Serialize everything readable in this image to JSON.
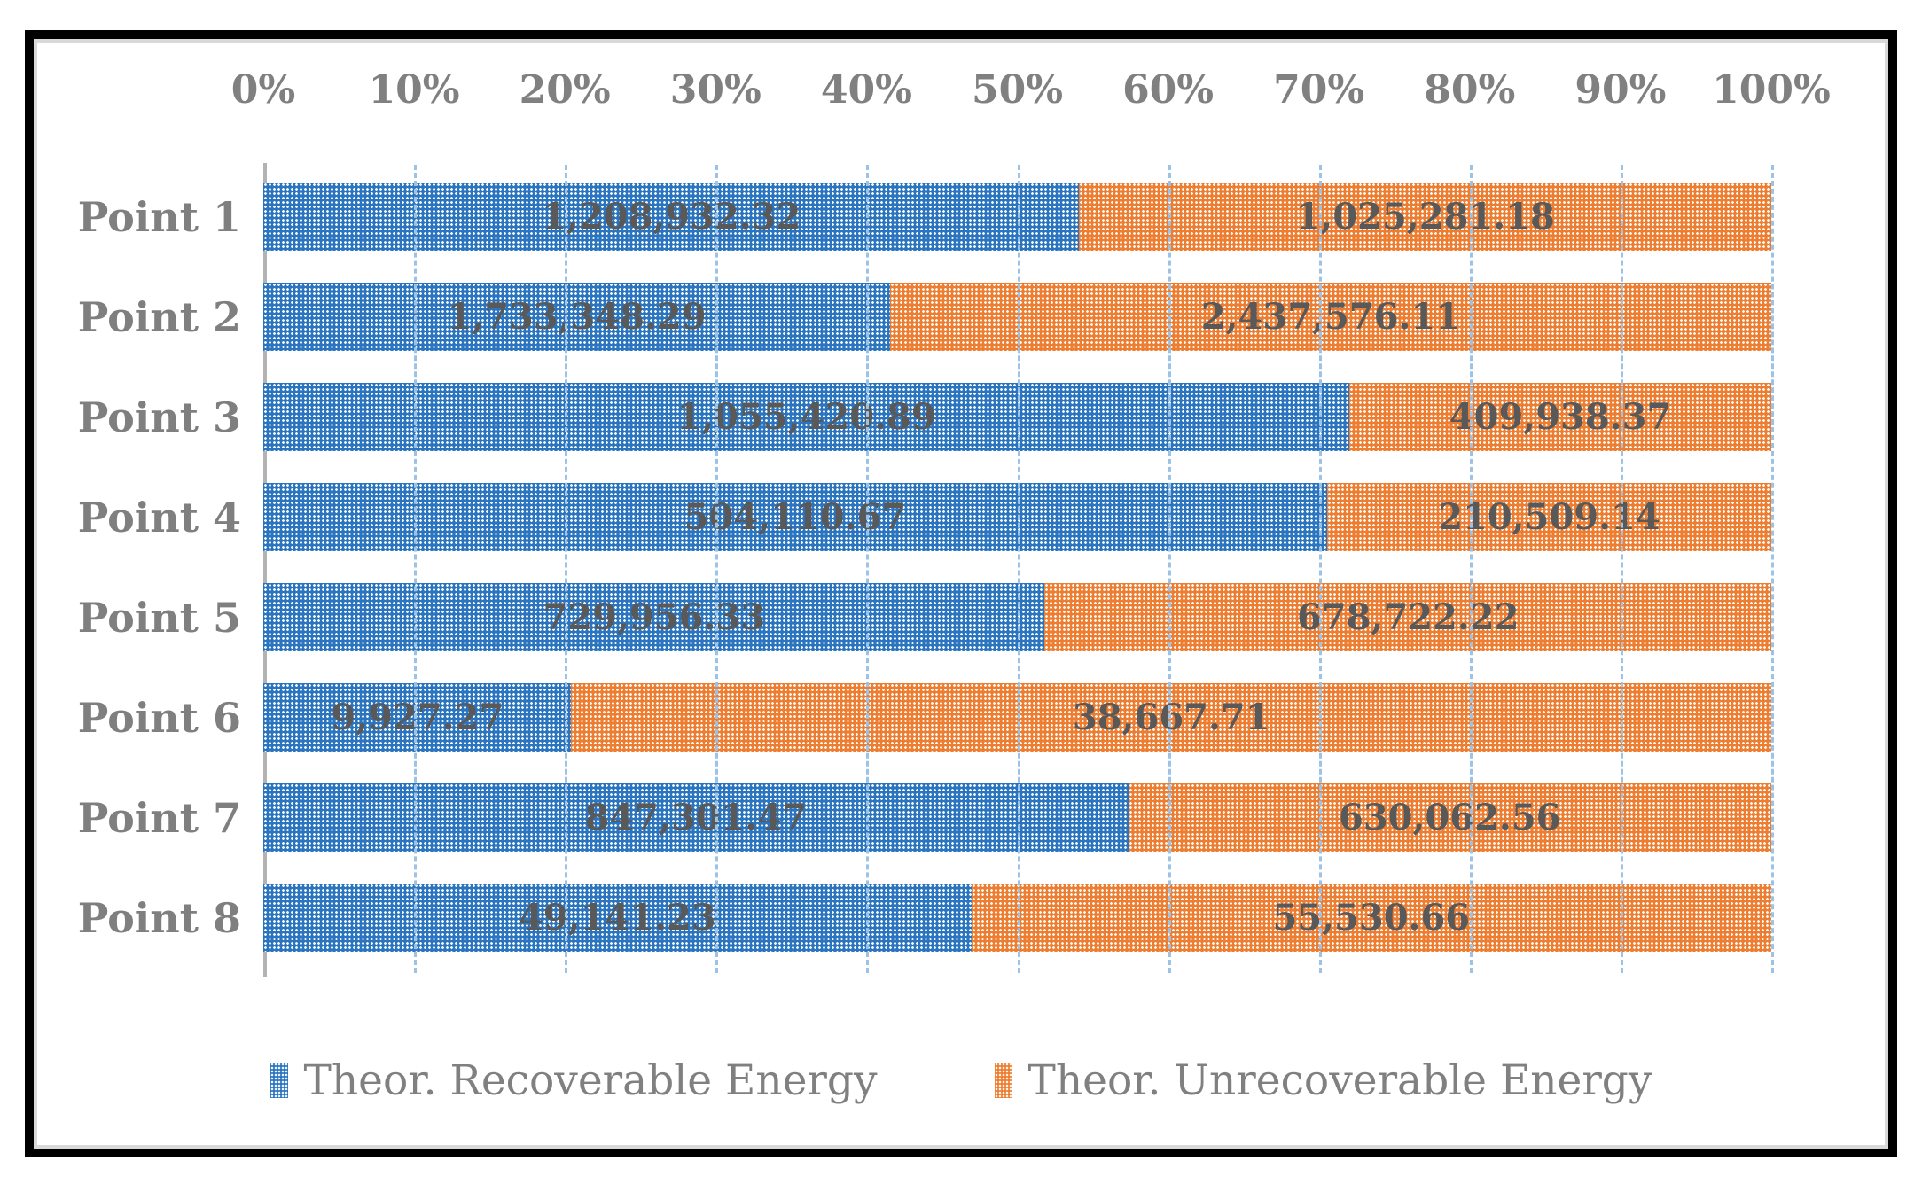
{
  "colors": {
    "recoverable_blue": "#2a74c0",
    "unrecoverable_orange": "#ed7d31",
    "gridline_blue": "#9cc3e5",
    "axis_line_gray": "#b3b3b3",
    "tick_text_gray": "#808080",
    "category_text_gray": "#7f7f7f",
    "value_text_gray": "#595959",
    "frame_border_black": "#000000",
    "inner_border_gray": "#d9d9d9"
  },
  "chart_data": {
    "type": "bar",
    "subtype": "stacked-100pct",
    "orientation": "horizontal",
    "grid": true,
    "value_axis_position": "top",
    "categories": [
      "Point 1",
      "Point 2",
      "Point 3",
      "Point 4",
      "Point 5",
      "Point 6",
      "Point 7",
      "Point 8"
    ],
    "series": [
      {
        "name": "Theor. Recoverable Energy",
        "color": "#2a74c0",
        "values": [
          1208932.32,
          1733348.29,
          1055420.89,
          504110.67,
          729956.33,
          9927.27,
          847301.47,
          49141.23
        ],
        "labels": [
          "1,208,932.32",
          "1,733,348.29",
          "1,055,420.89",
          "504,110.67",
          "729,956.33",
          "9,927.27",
          "847,301.47",
          "49,141.23"
        ]
      },
      {
        "name": "Theor. Unrecoverable Energy",
        "color": "#ed7d31",
        "values": [
          1025281.18,
          2437576.11,
          409938.37,
          210509.14,
          678722.22,
          38667.71,
          630062.56,
          55530.66
        ],
        "labels": [
          "1,025,281.18",
          "2,437,576.11",
          "409,938.37",
          "210,509.14",
          "678,722.22",
          "38,667.71",
          "630,062.56",
          "55,530.66"
        ]
      }
    ],
    "x_axis": {
      "min": 0,
      "max": 100,
      "tick_step": 10,
      "ticks": [
        "0%",
        "10%",
        "20%",
        "30%",
        "40%",
        "50%",
        "60%",
        "70%",
        "80%",
        "90%",
        "100%"
      ]
    },
    "legend": {
      "position": "bottom"
    }
  }
}
